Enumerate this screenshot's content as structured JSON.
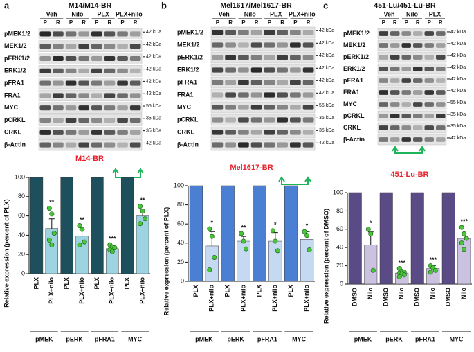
{
  "panel_labels": [
    "a",
    "b",
    "c"
  ],
  "blots": [
    {
      "title": "M14/M14-BR",
      "groups": [
        {
          "name": "Veh",
          "lanes": [
            "P",
            "R"
          ]
        },
        {
          "name": "Nilo",
          "lanes": [
            "P",
            "R"
          ]
        },
        {
          "name": "PLX",
          "lanes": [
            "P",
            "R"
          ]
        },
        {
          "name": "PLX+nilo",
          "lanes": [
            "P",
            "R"
          ]
        }
      ],
      "rows": [
        {
          "label": "pMEK1/2",
          "kda": "42 kDa"
        },
        {
          "label": "MEK1/2",
          "kda": "42 kDa"
        },
        {
          "label": "pERK1/2",
          "kda": "42 kDa"
        },
        {
          "label": "ERK1/2",
          "kda": "42 kDa"
        },
        {
          "label": "pFRA1",
          "kda": "42 kDa"
        },
        {
          "label": "FRA1",
          "kda": "42 kDa"
        },
        {
          "label": "MYC",
          "kda": "55 kDa"
        },
        {
          "label": "pCRKL",
          "kda": "35 kDa"
        },
        {
          "label": "CRKL",
          "kda": "35 kDa"
        },
        {
          "label": "β-Actin",
          "kda": "42 kDa"
        }
      ]
    },
    {
      "title": "Mel1617/Mel1617-BR",
      "groups": [
        {
          "name": "Veh",
          "lanes": [
            "P",
            "R"
          ]
        },
        {
          "name": "Nilo",
          "lanes": [
            "P",
            "R"
          ]
        },
        {
          "name": "PLX",
          "lanes": [
            "P",
            "R"
          ]
        },
        {
          "name": "PLX+nilo",
          "lanes": [
            "P",
            "R"
          ]
        }
      ],
      "rows": [
        {
          "label": "pMEK1/2",
          "kda": "42 kDa"
        },
        {
          "label": "MEK1/2",
          "kda": "42 kDa"
        },
        {
          "label": "pERK1/2",
          "kda": "42 kDa"
        },
        {
          "label": "ERK1/2",
          "kda": "42 kDa"
        },
        {
          "label": "pFRA1",
          "kda": "42 kDa"
        },
        {
          "label": "FRA1",
          "kda": "42 kDa"
        },
        {
          "label": "MYC",
          "kda": "55 kDa"
        },
        {
          "label": "pCRKL",
          "kda": "35 kDa"
        },
        {
          "label": "CRKL",
          "kda": "35 kDa"
        },
        {
          "label": "β-Actin",
          "kda": "42 kDa"
        }
      ]
    },
    {
      "title": "451-Lu/451-Lu-BR",
      "groups": [
        {
          "name": "Veh",
          "lanes": [
            "P",
            "R"
          ]
        },
        {
          "name": "Nilo",
          "lanes": [
            "P",
            "R"
          ]
        },
        {
          "name": "PLX",
          "lanes": [
            "P",
            "R"
          ]
        }
      ],
      "rows": [
        {
          "label": "pMEK1/2",
          "kda": "42 kDa"
        },
        {
          "label": "MEK1/2",
          "kda": "42 kDa"
        },
        {
          "label": "pERK1/2",
          "kda": "42 kDa"
        },
        {
          "label": "ERK1/2",
          "kda": "42 kDa"
        },
        {
          "label": "pFRA1",
          "kda": "42 kDa"
        },
        {
          "label": "FRA1",
          "kda": "42 kDa"
        },
        {
          "label": "MYC",
          "kda": "55 kDa"
        },
        {
          "label": "pCRKL",
          "kda": "35 kDa"
        },
        {
          "label": "CRKL",
          "kda": "35 kDa"
        },
        {
          "label": "β-Actin",
          "kda": "42 kDa"
        }
      ]
    }
  ],
  "chart_data": [
    {
      "type": "bar",
      "title": "M14-BR",
      "y_label": "Relative expression (percent of PLX)",
      "categories": [
        "PLX",
        "PLX+nilo",
        "PLX",
        "PLX+nilo",
        "PLX",
        "PLX+nilo",
        "PLX",
        "PLX+nilo"
      ],
      "groups": [
        "pMEK",
        "pERK",
        "pFRA1",
        "MYC"
      ],
      "values": [
        100,
        47,
        100,
        39,
        100,
        26,
        100,
        60
      ],
      "errors": [
        null,
        10,
        null,
        7,
        null,
        2,
        null,
        5
      ],
      "points": [
        [],
        [
          68,
          62,
          42,
          35,
          30
        ],
        [],
        [
          50,
          46,
          33,
          30
        ],
        [],
        [
          30,
          28,
          27,
          25,
          23
        ],
        [],
        [
          70,
          65,
          57,
          52
        ]
      ],
      "stars": [
        null,
        "**",
        null,
        "**",
        null,
        "***",
        null,
        "**"
      ],
      "colors": [
        "#1d4f5c",
        "#9ed4e2"
      ],
      "point_color": "#49c43b",
      "ylim": [
        0,
        100
      ],
      "yticks": [
        0,
        20,
        40,
        60,
        80,
        100
      ]
    },
    {
      "type": "bar",
      "title": "Mel1617-BR",
      "y_label": "Relative expression (percent of PLX)",
      "categories": [
        "PLX",
        "PLX+nilo",
        "PLX",
        "PLX+nilo",
        "PLX",
        "PLX+nilo",
        "PLX",
        "PLX+nilo"
      ],
      "groups": [
        "pMEK",
        "pERK",
        "pFRA1",
        "MYC"
      ],
      "values": [
        100,
        37,
        100,
        42,
        100,
        42,
        100,
        44
      ],
      "errors": [
        null,
        15,
        null,
        5,
        null,
        9,
        null,
        8
      ],
      "points": [
        [],
        [
          55,
          47,
          25,
          12
        ],
        [],
        [
          50,
          42,
          34
        ],
        [],
        [
          53,
          42,
          32
        ],
        [],
        [
          52,
          48,
          33
        ]
      ],
      "stars": [
        null,
        "*",
        null,
        "**",
        null,
        "*",
        null,
        "*"
      ],
      "colors": [
        "#4a7fd4",
        "#c6d9f3"
      ],
      "point_color": "#49c43b",
      "ylim": [
        0,
        100
      ],
      "yticks": [
        0,
        20,
        40,
        60,
        80,
        100
      ]
    },
    {
      "type": "bar",
      "title": "451-Lu-BR",
      "y_label": "Relative expression (percent of DMSO)",
      "categories": [
        "DMSO",
        "Nilo",
        "DMSO",
        "Nilo",
        "DMSO",
        "Nilo",
        "DMSO",
        "Nilo"
      ],
      "groups": [
        "pMEK",
        "pERK",
        "pFRA1",
        "MYC"
      ],
      "values": [
        100,
        43,
        100,
        12,
        100,
        17,
        100,
        50
      ],
      "errors": [
        null,
        14,
        null,
        2,
        null,
        3,
        null,
        5
      ],
      "points": [
        [],
        [
          60,
          55,
          15
        ],
        [],
        [
          17,
          14,
          13,
          12,
          11,
          10,
          8
        ],
        [],
        [
          20,
          18,
          15,
          13
        ],
        [],
        [
          62,
          55,
          50,
          45,
          38
        ]
      ],
      "stars": [
        null,
        "*",
        null,
        "***",
        null,
        "***",
        null,
        "***"
      ],
      "colors": [
        "#5a4a85",
        "#cbc1e1"
      ],
      "point_color": "#49c43b",
      "ylim": [
        0,
        100
      ],
      "yticks": [
        0,
        20,
        40,
        60,
        80,
        100
      ]
    }
  ]
}
